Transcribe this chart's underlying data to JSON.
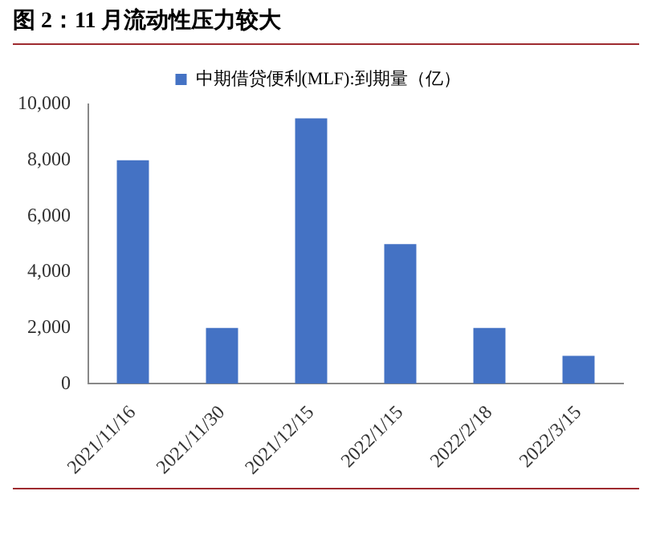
{
  "chart_data": {
    "type": "bar",
    "title": "图 2：11 月流动性压力较大",
    "categories": [
      "2021/11/16",
      "2021/11/30",
      "2021/12/15",
      "2022/1/15",
      "2022/2/18",
      "2022/3/15"
    ],
    "series": [
      {
        "name": "中期借贷便利(MLF):到期量（亿）",
        "color": "#4472c4",
        "values": [
          8000,
          2000,
          9500,
          5000,
          2000,
          1000
        ]
      }
    ],
    "ylim": [
      0,
      10000
    ],
    "yticks": [
      {
        "value": 0,
        "label": "0"
      },
      {
        "value": 2000,
        "label": "2,000"
      },
      {
        "value": 4000,
        "label": "4,000"
      },
      {
        "value": 6000,
        "label": "6,000"
      },
      {
        "value": 8000,
        "label": "8,000"
      },
      {
        "value": 10000,
        "label": "10,000"
      }
    ],
    "grid": false,
    "legend": "top"
  }
}
